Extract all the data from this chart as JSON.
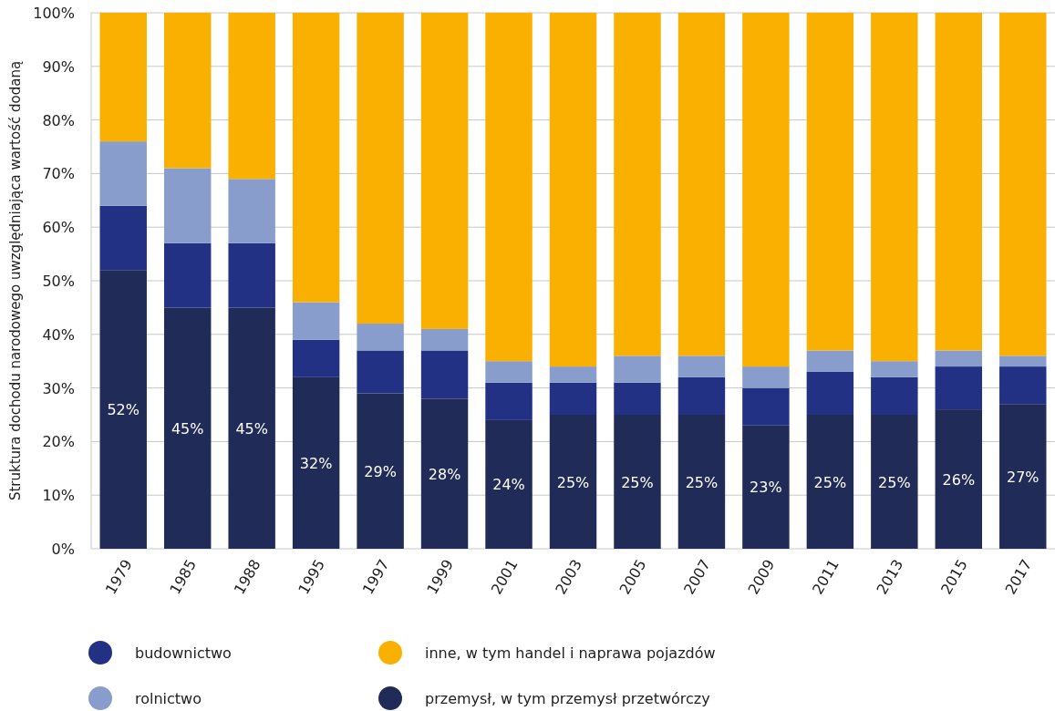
{
  "chart_data": {
    "type": "bar",
    "stacked": true,
    "ylabel": "Struktura dochodu narodowego uwzględniająca wartość dodaną",
    "categories": [
      "1979",
      "1985",
      "1988",
      "1995",
      "1997",
      "1999",
      "2001",
      "2003",
      "2005",
      "2007",
      "2009",
      "2011",
      "2013",
      "2015",
      "2017"
    ],
    "series": [
      {
        "name": "przemysł, w tym przemysł przetwórczy",
        "color": "#212b57",
        "values": [
          52,
          45,
          45,
          32,
          29,
          28,
          24,
          25,
          25,
          25,
          23,
          25,
          25,
          26,
          27
        ],
        "value_labels": [
          "52%",
          "45%",
          "45%",
          "32%",
          "29%",
          "28%",
          "24%",
          "25%",
          "25%",
          "25%",
          "23%",
          "25%",
          "25%",
          "26%",
          "27%"
        ]
      },
      {
        "name": "budownictwo",
        "color": "#233184",
        "values": [
          12,
          12,
          12,
          7,
          8,
          9,
          7,
          6,
          6,
          7,
          7,
          8,
          7,
          8,
          7
        ]
      },
      {
        "name": "rolnictwo",
        "color": "#899dcd",
        "values": [
          12,
          14,
          12,
          7,
          5,
          4,
          4,
          3,
          5,
          4,
          4,
          4,
          3,
          3,
          2
        ]
      },
      {
        "name": "inne, w tym handel i naprawa pojazdów",
        "color": "#f9b000",
        "values": [
          24,
          29,
          31,
          54,
          58,
          59,
          65,
          66,
          64,
          64,
          66,
          63,
          65,
          63,
          64
        ]
      }
    ],
    "ylim": [
      0,
      100
    ],
    "yticks": [
      {
        "value": 0,
        "label": "0%"
      },
      {
        "value": 10,
        "label": "10%"
      },
      {
        "value": 20,
        "label": "20%"
      },
      {
        "value": 30,
        "label": "30%"
      },
      {
        "value": 40,
        "label": "40%"
      },
      {
        "value": 50,
        "label": "50%"
      },
      {
        "value": 60,
        "label": "60%"
      },
      {
        "value": 70,
        "label": "70%"
      },
      {
        "value": 80,
        "label": "80%"
      },
      {
        "value": 90,
        "label": "90%"
      },
      {
        "value": 100,
        "label": "100%"
      }
    ],
    "grid": "y",
    "legend": "bottom"
  }
}
